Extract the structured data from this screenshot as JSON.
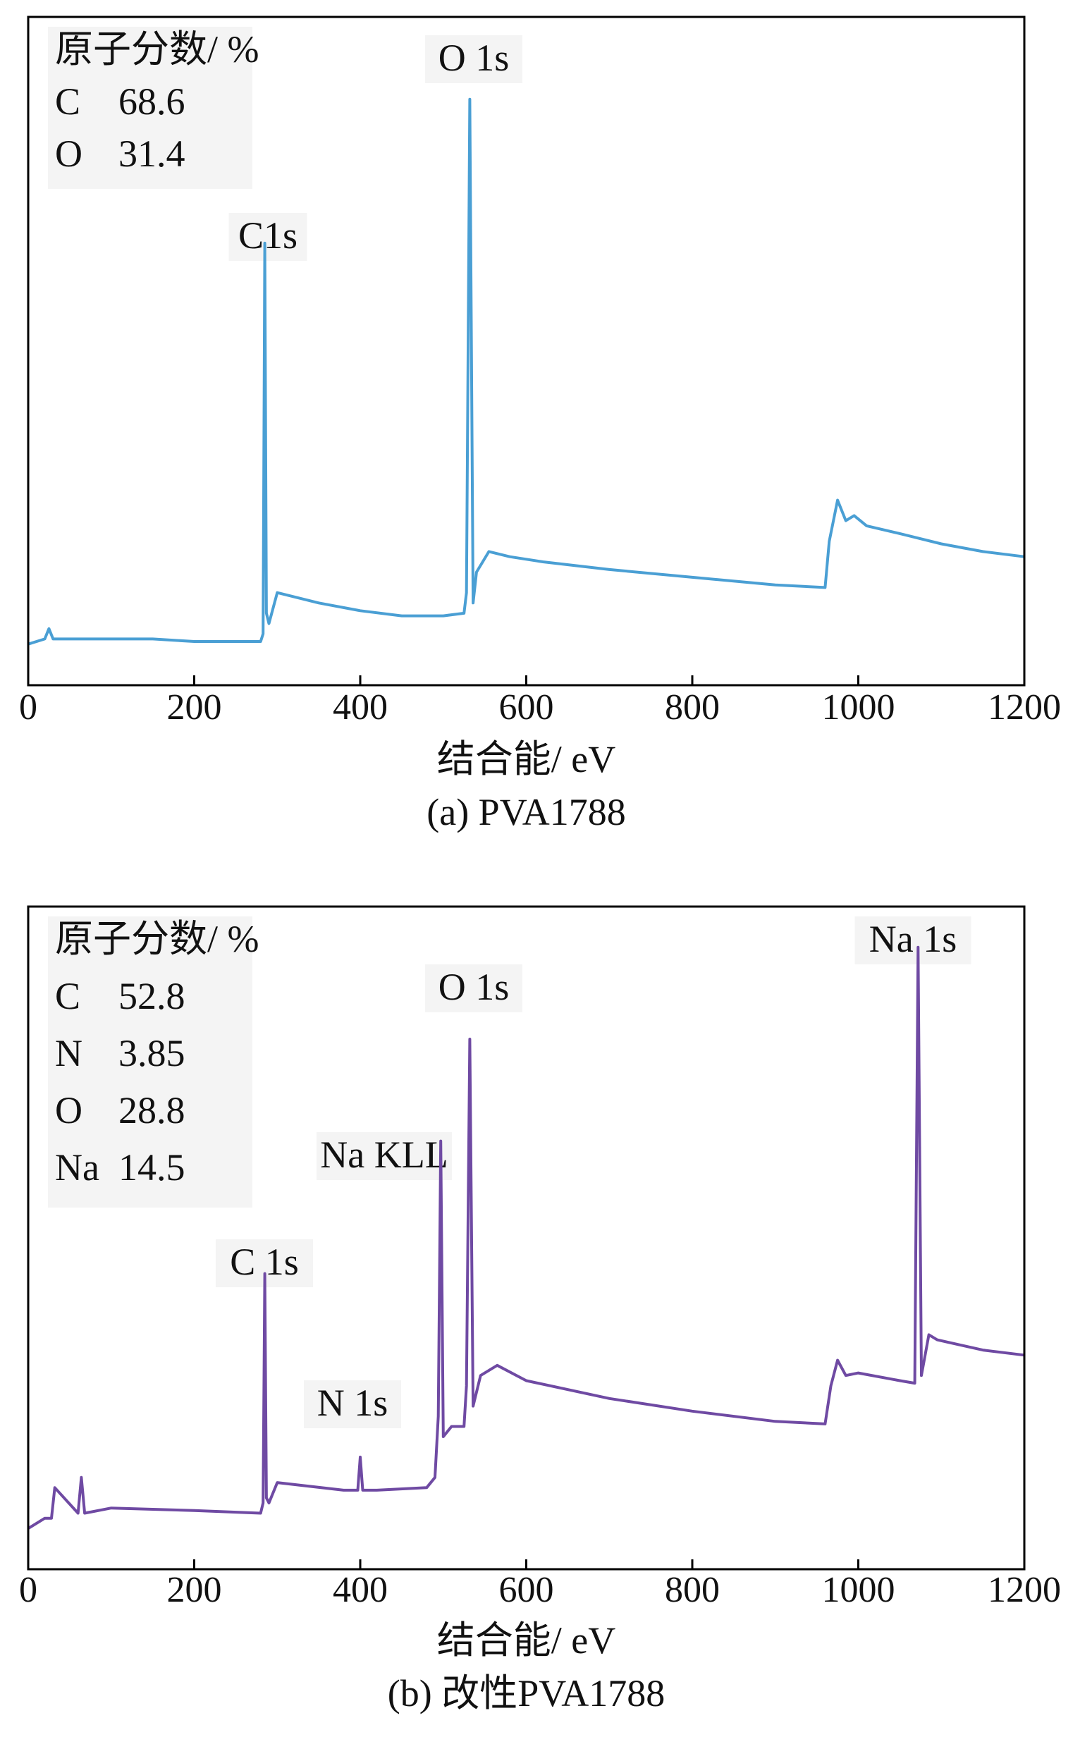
{
  "chart_data": [
    {
      "type": "line",
      "caption": "(a) PVA1788",
      "xlabel": "结合能/ eV",
      "ylabel": "",
      "xlim": [
        0,
        1200
      ],
      "x_ticks": [
        "0",
        "200",
        "400",
        "600",
        "800",
        "1000",
        "1200"
      ],
      "y_ticks": false,
      "color": "#4a9fd4",
      "composition_title": "原子分数/ %",
      "composition": [
        {
          "element": "C",
          "value": "68.6"
        },
        {
          "element": "O",
          "value": "31.4"
        }
      ],
      "peak_labels": [
        {
          "text": "C1s",
          "x": 285
        },
        {
          "text": "O 1s",
          "x": 532
        }
      ],
      "series": [
        {
          "x": [
            0,
            20,
            25,
            30,
            100,
            150,
            200,
            250,
            280,
            283,
            285,
            287,
            290,
            300,
            350,
            400,
            450,
            500,
            525,
            528,
            532,
            536,
            540,
            555,
            580,
            620,
            700,
            800,
            900,
            960,
            965,
            975,
            985,
            995,
            1010,
            1050,
            1100,
            1150,
            1200
          ],
          "y": [
            8,
            9,
            11,
            9,
            9,
            9,
            8.5,
            8.5,
            8.5,
            10,
            86,
            14,
            12,
            18,
            16,
            14.5,
            13.5,
            13.5,
            14,
            18,
            114,
            16,
            22,
            26,
            25,
            24,
            22.5,
            21,
            19.5,
            19,
            28,
            36,
            32,
            33,
            31,
            29.5,
            27.5,
            26,
            25
          ]
        }
      ]
    },
    {
      "type": "line",
      "caption": "(b) 改性PVA1788",
      "xlabel": "结合能/ eV",
      "ylabel": "",
      "xlim": [
        0,
        1200
      ],
      "x_ticks": [
        "0",
        "200",
        "400",
        "600",
        "800",
        "1000",
        "1200"
      ],
      "y_ticks": false,
      "color": "#6f4aa3",
      "composition_title": "原子分数/ %",
      "composition": [
        {
          "element": "C",
          "value": "52.8"
        },
        {
          "element": "N",
          "value": "3.85"
        },
        {
          "element": "O",
          "value": "28.8"
        },
        {
          "element": "Na",
          "value": "14.5"
        }
      ],
      "peak_labels": [
        {
          "text": "C 1s",
          "x": 285
        },
        {
          "text": "N 1s",
          "x": 400
        },
        {
          "text": "Na KLL",
          "x": 495
        },
        {
          "text": "O 1s",
          "x": 532
        },
        {
          "text": "Na 1s",
          "x": 1072
        }
      ],
      "series": [
        {
          "x": [
            0,
            20,
            28,
            32,
            60,
            64,
            68,
            100,
            200,
            280,
            283,
            285,
            287,
            290,
            300,
            380,
            397,
            400,
            403,
            420,
            480,
            490,
            494,
            497,
            500,
            510,
            525,
            528,
            532,
            536,
            545,
            565,
            600,
            700,
            800,
            900,
            960,
            967,
            975,
            985,
            1000,
            1050,
            1068,
            1072,
            1076,
            1085,
            1095,
            1150,
            1200
          ],
          "y": [
            8,
            10,
            10,
            16,
            11,
            18,
            11,
            12,
            11.5,
            11,
            13,
            58,
            14,
            13,
            17,
            15.5,
            15.5,
            22,
            15.5,
            15.5,
            16,
            18,
            30,
            84,
            26,
            28,
            28,
            36,
            104,
            32,
            38,
            40,
            37,
            33.5,
            31,
            29,
            28.5,
            36,
            41,
            38,
            38.5,
            37,
            36.5,
            122,
            38,
            46,
            45,
            43,
            42
          ]
        }
      ]
    }
  ]
}
